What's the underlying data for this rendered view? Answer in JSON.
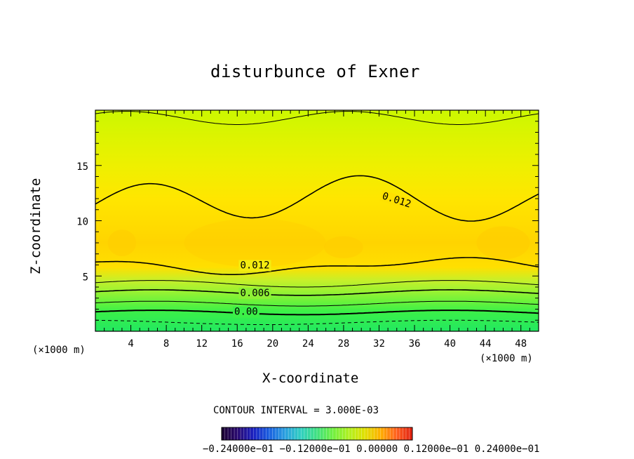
{
  "chart_data": {
    "type": "heatmap",
    "subtype": "filled-contour",
    "title": "disturbunce of Exner",
    "xlabel": "X-coordinate",
    "ylabel": "Z-coordinate",
    "x_unit_label": "(×1000 m)",
    "xlim": [
      0,
      50
    ],
    "ylim": [
      0,
      20
    ],
    "x_ticks": [
      4,
      8,
      12,
      16,
      20,
      24,
      28,
      32,
      36,
      40,
      44,
      48
    ],
    "y_ticks": [
      5,
      10,
      15
    ],
    "contour_interval_text": "CONTOUR INTERVAL = 3.000E-03",
    "contour_interval": 0.003,
    "contour_labels": [
      {
        "text": "0.012",
        "x": 34,
        "z": 11.9
      },
      {
        "text": "0.012",
        "x": 18,
        "z": 6.0
      },
      {
        "text": "0.006",
        "x": 18,
        "z": 3.5
      },
      {
        "text": "0.00",
        "x": 17,
        "z": 1.8
      }
    ],
    "field_bands": [
      {
        "z": 0.0,
        "value": -0.002,
        "color": "#22e860"
      },
      {
        "z": 1.8,
        "value": 0.0,
        "color": "#3cf048"
      },
      {
        "z": 2.6,
        "value": 0.003,
        "color": "#66f23c"
      },
      {
        "z": 3.5,
        "value": 0.006,
        "color": "#95f233"
      },
      {
        "z": 4.6,
        "value": 0.009,
        "color": "#c6f02a"
      },
      {
        "z": 5.8,
        "value": 0.012,
        "color": "#ffdf00"
      },
      {
        "z": 8.0,
        "value": 0.014,
        "color": "#ffd400"
      },
      {
        "z": 12.0,
        "value": 0.012,
        "color": "#ffe600"
      },
      {
        "z": 15.0,
        "value": 0.01,
        "color": "#eef000"
      },
      {
        "z": 20.0,
        "value": 0.008,
        "color": "#ccf800"
      }
    ],
    "colorbar": {
      "tick_labels_text": "−0.24000e−01 −0.12000e−01 0.00000 0.12000e−01 0.24000e−01",
      "range": [
        -0.024,
        0.024
      ],
      "colors": [
        "#1a0030",
        "#2a0a70",
        "#1a20c0",
        "#1a60e0",
        "#2aa0e0",
        "#30d0c0",
        "#40e080",
        "#70f040",
        "#b0f020",
        "#e0e000",
        "#ffb000",
        "#ff6020",
        "#e02010"
      ]
    },
    "grid": false,
    "legend": "none"
  }
}
